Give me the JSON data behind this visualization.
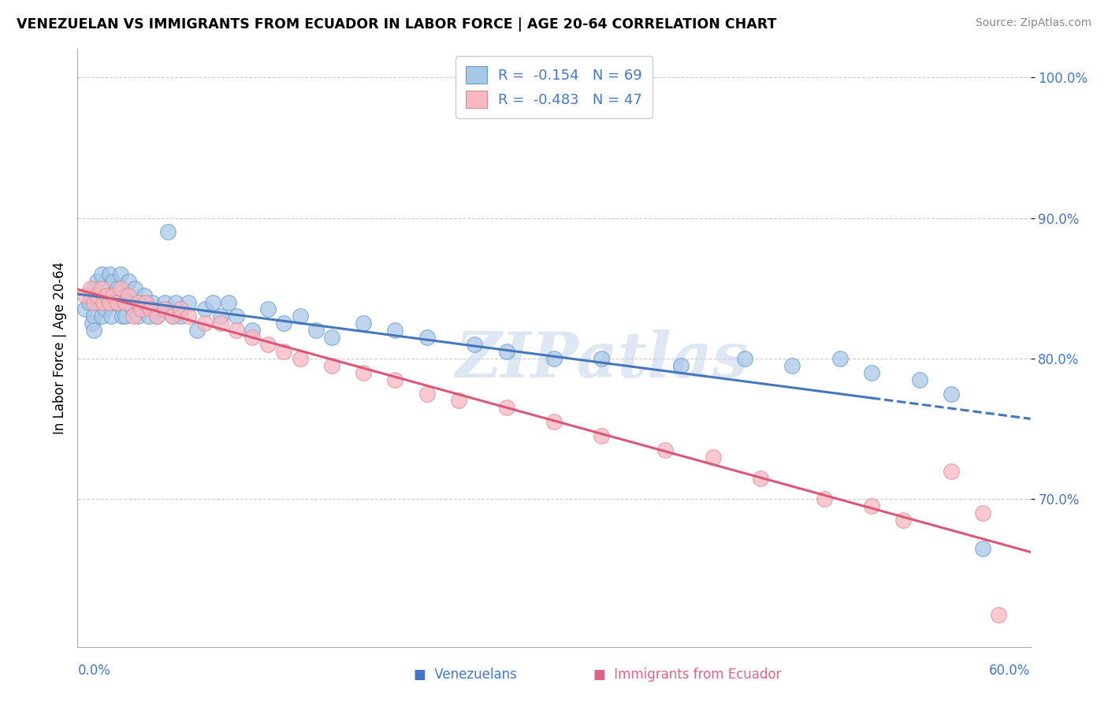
{
  "title": "VENEZUELAN VS IMMIGRANTS FROM ECUADOR IN LABOR FORCE | AGE 20-64 CORRELATION CHART",
  "source": "Source: ZipAtlas.com",
  "ylabel": "In Labor Force | Age 20-64",
  "blue_color": "#a8c8e8",
  "blue_edge": "#6699cc",
  "pink_color": "#f8b8c0",
  "pink_edge": "#dd8899",
  "blue_line": "#4477bb",
  "pink_line": "#dd5577",
  "watermark": "ZIPatlas",
  "xlim": [
    0.0,
    0.6
  ],
  "ylim": [
    0.595,
    1.02
  ],
  "ytick_vals": [
    0.7,
    0.8,
    0.9,
    1.0
  ],
  "ytick_labels": [
    "70.0%",
    "80.0%",
    "90.0%",
    "100.0%"
  ],
  "legend_r1": "R = ",
  "legend_rv1": "-0.154",
  "legend_n1": "  N = ",
  "legend_nv1": "69",
  "legend_r2": "R = ",
  "legend_rv2": "-0.483",
  "legend_n2": "  N = ",
  "legend_nv2": "47",
  "ven_x": [
    0.005,
    0.007,
    0.008,
    0.009,
    0.01,
    0.01,
    0.01,
    0.012,
    0.013,
    0.015,
    0.015,
    0.016,
    0.017,
    0.018,
    0.02,
    0.02,
    0.021,
    0.022,
    0.023,
    0.025,
    0.025,
    0.027,
    0.028,
    0.03,
    0.03,
    0.032,
    0.033,
    0.035,
    0.036,
    0.038,
    0.04,
    0.042,
    0.045,
    0.047,
    0.05,
    0.052,
    0.055,
    0.057,
    0.06,
    0.062,
    0.065,
    0.07,
    0.075,
    0.08,
    0.085,
    0.09,
    0.095,
    0.1,
    0.11,
    0.12,
    0.13,
    0.14,
    0.15,
    0.16,
    0.18,
    0.2,
    0.22,
    0.25,
    0.27,
    0.3,
    0.33,
    0.38,
    0.42,
    0.45,
    0.48,
    0.5,
    0.53,
    0.55,
    0.57
  ],
  "ven_y": [
    0.835,
    0.84,
    0.845,
    0.825,
    0.85,
    0.83,
    0.82,
    0.855,
    0.84,
    0.83,
    0.86,
    0.84,
    0.835,
    0.845,
    0.86,
    0.84,
    0.83,
    0.855,
    0.84,
    0.84,
    0.85,
    0.86,
    0.83,
    0.845,
    0.83,
    0.855,
    0.84,
    0.835,
    0.85,
    0.83,
    0.84,
    0.845,
    0.83,
    0.84,
    0.83,
    0.835,
    0.84,
    0.89,
    0.83,
    0.84,
    0.83,
    0.84,
    0.82,
    0.835,
    0.84,
    0.83,
    0.84,
    0.83,
    0.82,
    0.835,
    0.825,
    0.83,
    0.82,
    0.815,
    0.825,
    0.82,
    0.815,
    0.81,
    0.805,
    0.8,
    0.8,
    0.795,
    0.8,
    0.795,
    0.8,
    0.79,
    0.785,
    0.775,
    0.665
  ],
  "ecu_x": [
    0.005,
    0.008,
    0.01,
    0.012,
    0.015,
    0.016,
    0.018,
    0.02,
    0.022,
    0.025,
    0.027,
    0.03,
    0.032,
    0.035,
    0.038,
    0.04,
    0.043,
    0.046,
    0.05,
    0.055,
    0.06,
    0.065,
    0.07,
    0.08,
    0.09,
    0.1,
    0.11,
    0.12,
    0.13,
    0.14,
    0.16,
    0.18,
    0.2,
    0.22,
    0.24,
    0.27,
    0.3,
    0.33,
    0.37,
    0.4,
    0.43,
    0.47,
    0.5,
    0.52,
    0.55,
    0.57,
    0.58
  ],
  "ecu_y": [
    0.845,
    0.85,
    0.84,
    0.845,
    0.85,
    0.84,
    0.845,
    0.84,
    0.845,
    0.84,
    0.85,
    0.84,
    0.845,
    0.83,
    0.84,
    0.835,
    0.84,
    0.835,
    0.83,
    0.835,
    0.83,
    0.835,
    0.83,
    0.825,
    0.825,
    0.82,
    0.815,
    0.81,
    0.805,
    0.8,
    0.795,
    0.79,
    0.785,
    0.775,
    0.77,
    0.765,
    0.755,
    0.745,
    0.735,
    0.73,
    0.715,
    0.7,
    0.695,
    0.685,
    0.72,
    0.69,
    0.618
  ]
}
